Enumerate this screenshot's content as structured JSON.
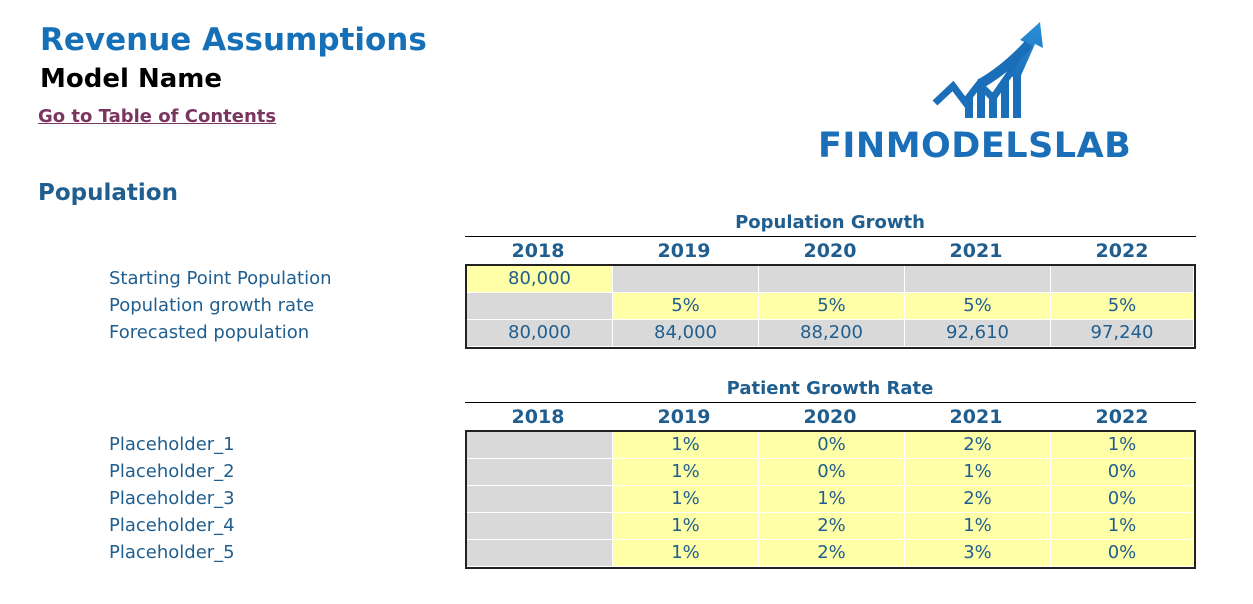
{
  "header": {
    "title": "Revenue Assumptions",
    "model_name": "Model Name",
    "toc_link": "Go to Table of Contents",
    "section": "Population"
  },
  "logo": {
    "text": "FINMODELSLAB",
    "icon": "growth-arrow-chart-icon",
    "color": "#1A6FB8"
  },
  "population_table": {
    "title": "Population Growth",
    "years": [
      "2018",
      "2019",
      "2020",
      "2021",
      "2022"
    ],
    "rows": [
      {
        "label": "Starting Point Population",
        "values": [
          "80,000",
          "",
          "",
          "",
          ""
        ],
        "styles": [
          "yellow",
          "gray",
          "gray",
          "gray",
          "gray"
        ]
      },
      {
        "label": "Population growth rate",
        "values": [
          "",
          "5%",
          "5%",
          "5%",
          "5%"
        ],
        "styles": [
          "gray",
          "yellow",
          "yellow",
          "yellow",
          "yellow"
        ]
      },
      {
        "label": "Forecasted population",
        "values": [
          "80,000",
          "84,000",
          "88,200",
          "92,610",
          "97,240"
        ],
        "styles": [
          "gray",
          "gray",
          "gray",
          "gray",
          "gray"
        ]
      }
    ]
  },
  "patient_table": {
    "title": "Patient Growth Rate",
    "years": [
      "2018",
      "2019",
      "2020",
      "2021",
      "2022"
    ],
    "rows": [
      {
        "label": "Placeholder_1",
        "values": [
          "",
          "1%",
          "0%",
          "2%",
          "1%"
        ],
        "styles": [
          "gray",
          "yellow",
          "yellow",
          "yellow",
          "yellow"
        ]
      },
      {
        "label": "Placeholder_2",
        "values": [
          "",
          "1%",
          "0%",
          "1%",
          "0%"
        ],
        "styles": [
          "gray",
          "yellow",
          "yellow",
          "yellow",
          "yellow"
        ]
      },
      {
        "label": "Placeholder_3",
        "values": [
          "",
          "1%",
          "1%",
          "2%",
          "0%"
        ],
        "styles": [
          "gray",
          "yellow",
          "yellow",
          "yellow",
          "yellow"
        ]
      },
      {
        "label": "Placeholder_4",
        "values": [
          "",
          "1%",
          "2%",
          "1%",
          "1%"
        ],
        "styles": [
          "gray",
          "yellow",
          "yellow",
          "yellow",
          "yellow"
        ]
      },
      {
        "label": "Placeholder_5",
        "values": [
          "",
          "1%",
          "2%",
          "3%",
          "0%"
        ],
        "styles": [
          "gray",
          "yellow",
          "yellow",
          "yellow",
          "yellow"
        ]
      }
    ]
  }
}
